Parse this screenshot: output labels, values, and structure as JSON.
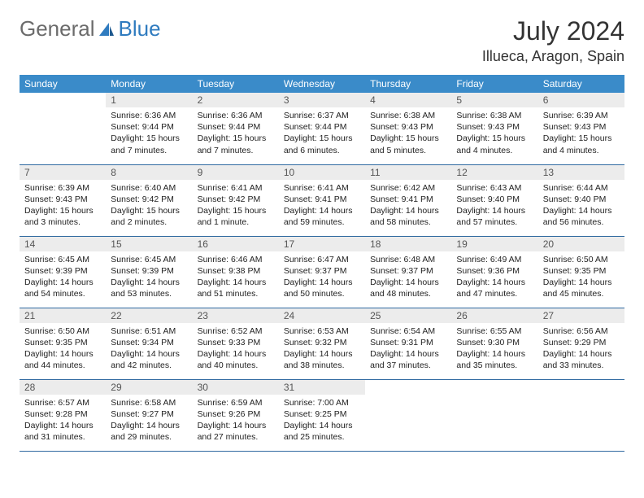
{
  "brand": {
    "part1": "General",
    "part2": "Blue"
  },
  "title": {
    "month": "July 2024",
    "location": "Illueca, Aragon, Spain"
  },
  "colors": {
    "header_bg": "#3a8bc9",
    "header_fg": "#ffffff",
    "daynum_bg": "#ececec",
    "row_border": "#2f69a0",
    "brand_gray": "#6b6b6b",
    "brand_blue": "#2f7bbf"
  },
  "weekdays": [
    "Sunday",
    "Monday",
    "Tuesday",
    "Wednesday",
    "Thursday",
    "Friday",
    "Saturday"
  ],
  "weeks": [
    [
      {
        "n": "",
        "sr": "",
        "ss": "",
        "dl": ""
      },
      {
        "n": "1",
        "sr": "Sunrise: 6:36 AM",
        "ss": "Sunset: 9:44 PM",
        "dl": "Daylight: 15 hours and 7 minutes."
      },
      {
        "n": "2",
        "sr": "Sunrise: 6:36 AM",
        "ss": "Sunset: 9:44 PM",
        "dl": "Daylight: 15 hours and 7 minutes."
      },
      {
        "n": "3",
        "sr": "Sunrise: 6:37 AM",
        "ss": "Sunset: 9:44 PM",
        "dl": "Daylight: 15 hours and 6 minutes."
      },
      {
        "n": "4",
        "sr": "Sunrise: 6:38 AM",
        "ss": "Sunset: 9:43 PM",
        "dl": "Daylight: 15 hours and 5 minutes."
      },
      {
        "n": "5",
        "sr": "Sunrise: 6:38 AM",
        "ss": "Sunset: 9:43 PM",
        "dl": "Daylight: 15 hours and 4 minutes."
      },
      {
        "n": "6",
        "sr": "Sunrise: 6:39 AM",
        "ss": "Sunset: 9:43 PM",
        "dl": "Daylight: 15 hours and 4 minutes."
      }
    ],
    [
      {
        "n": "7",
        "sr": "Sunrise: 6:39 AM",
        "ss": "Sunset: 9:43 PM",
        "dl": "Daylight: 15 hours and 3 minutes."
      },
      {
        "n": "8",
        "sr": "Sunrise: 6:40 AM",
        "ss": "Sunset: 9:42 PM",
        "dl": "Daylight: 15 hours and 2 minutes."
      },
      {
        "n": "9",
        "sr": "Sunrise: 6:41 AM",
        "ss": "Sunset: 9:42 PM",
        "dl": "Daylight: 15 hours and 1 minute."
      },
      {
        "n": "10",
        "sr": "Sunrise: 6:41 AM",
        "ss": "Sunset: 9:41 PM",
        "dl": "Daylight: 14 hours and 59 minutes."
      },
      {
        "n": "11",
        "sr": "Sunrise: 6:42 AM",
        "ss": "Sunset: 9:41 PM",
        "dl": "Daylight: 14 hours and 58 minutes."
      },
      {
        "n": "12",
        "sr": "Sunrise: 6:43 AM",
        "ss": "Sunset: 9:40 PM",
        "dl": "Daylight: 14 hours and 57 minutes."
      },
      {
        "n": "13",
        "sr": "Sunrise: 6:44 AM",
        "ss": "Sunset: 9:40 PM",
        "dl": "Daylight: 14 hours and 56 minutes."
      }
    ],
    [
      {
        "n": "14",
        "sr": "Sunrise: 6:45 AM",
        "ss": "Sunset: 9:39 PM",
        "dl": "Daylight: 14 hours and 54 minutes."
      },
      {
        "n": "15",
        "sr": "Sunrise: 6:45 AM",
        "ss": "Sunset: 9:39 PM",
        "dl": "Daylight: 14 hours and 53 minutes."
      },
      {
        "n": "16",
        "sr": "Sunrise: 6:46 AM",
        "ss": "Sunset: 9:38 PM",
        "dl": "Daylight: 14 hours and 51 minutes."
      },
      {
        "n": "17",
        "sr": "Sunrise: 6:47 AM",
        "ss": "Sunset: 9:37 PM",
        "dl": "Daylight: 14 hours and 50 minutes."
      },
      {
        "n": "18",
        "sr": "Sunrise: 6:48 AM",
        "ss": "Sunset: 9:37 PM",
        "dl": "Daylight: 14 hours and 48 minutes."
      },
      {
        "n": "19",
        "sr": "Sunrise: 6:49 AM",
        "ss": "Sunset: 9:36 PM",
        "dl": "Daylight: 14 hours and 47 minutes."
      },
      {
        "n": "20",
        "sr": "Sunrise: 6:50 AM",
        "ss": "Sunset: 9:35 PM",
        "dl": "Daylight: 14 hours and 45 minutes."
      }
    ],
    [
      {
        "n": "21",
        "sr": "Sunrise: 6:50 AM",
        "ss": "Sunset: 9:35 PM",
        "dl": "Daylight: 14 hours and 44 minutes."
      },
      {
        "n": "22",
        "sr": "Sunrise: 6:51 AM",
        "ss": "Sunset: 9:34 PM",
        "dl": "Daylight: 14 hours and 42 minutes."
      },
      {
        "n": "23",
        "sr": "Sunrise: 6:52 AM",
        "ss": "Sunset: 9:33 PM",
        "dl": "Daylight: 14 hours and 40 minutes."
      },
      {
        "n": "24",
        "sr": "Sunrise: 6:53 AM",
        "ss": "Sunset: 9:32 PM",
        "dl": "Daylight: 14 hours and 38 minutes."
      },
      {
        "n": "25",
        "sr": "Sunrise: 6:54 AM",
        "ss": "Sunset: 9:31 PM",
        "dl": "Daylight: 14 hours and 37 minutes."
      },
      {
        "n": "26",
        "sr": "Sunrise: 6:55 AM",
        "ss": "Sunset: 9:30 PM",
        "dl": "Daylight: 14 hours and 35 minutes."
      },
      {
        "n": "27",
        "sr": "Sunrise: 6:56 AM",
        "ss": "Sunset: 9:29 PM",
        "dl": "Daylight: 14 hours and 33 minutes."
      }
    ],
    [
      {
        "n": "28",
        "sr": "Sunrise: 6:57 AM",
        "ss": "Sunset: 9:28 PM",
        "dl": "Daylight: 14 hours and 31 minutes."
      },
      {
        "n": "29",
        "sr": "Sunrise: 6:58 AM",
        "ss": "Sunset: 9:27 PM",
        "dl": "Daylight: 14 hours and 29 minutes."
      },
      {
        "n": "30",
        "sr": "Sunrise: 6:59 AM",
        "ss": "Sunset: 9:26 PM",
        "dl": "Daylight: 14 hours and 27 minutes."
      },
      {
        "n": "31",
        "sr": "Sunrise: 7:00 AM",
        "ss": "Sunset: 9:25 PM",
        "dl": "Daylight: 14 hours and 25 minutes."
      },
      {
        "n": "",
        "sr": "",
        "ss": "",
        "dl": ""
      },
      {
        "n": "",
        "sr": "",
        "ss": "",
        "dl": ""
      },
      {
        "n": "",
        "sr": "",
        "ss": "",
        "dl": ""
      }
    ]
  ]
}
